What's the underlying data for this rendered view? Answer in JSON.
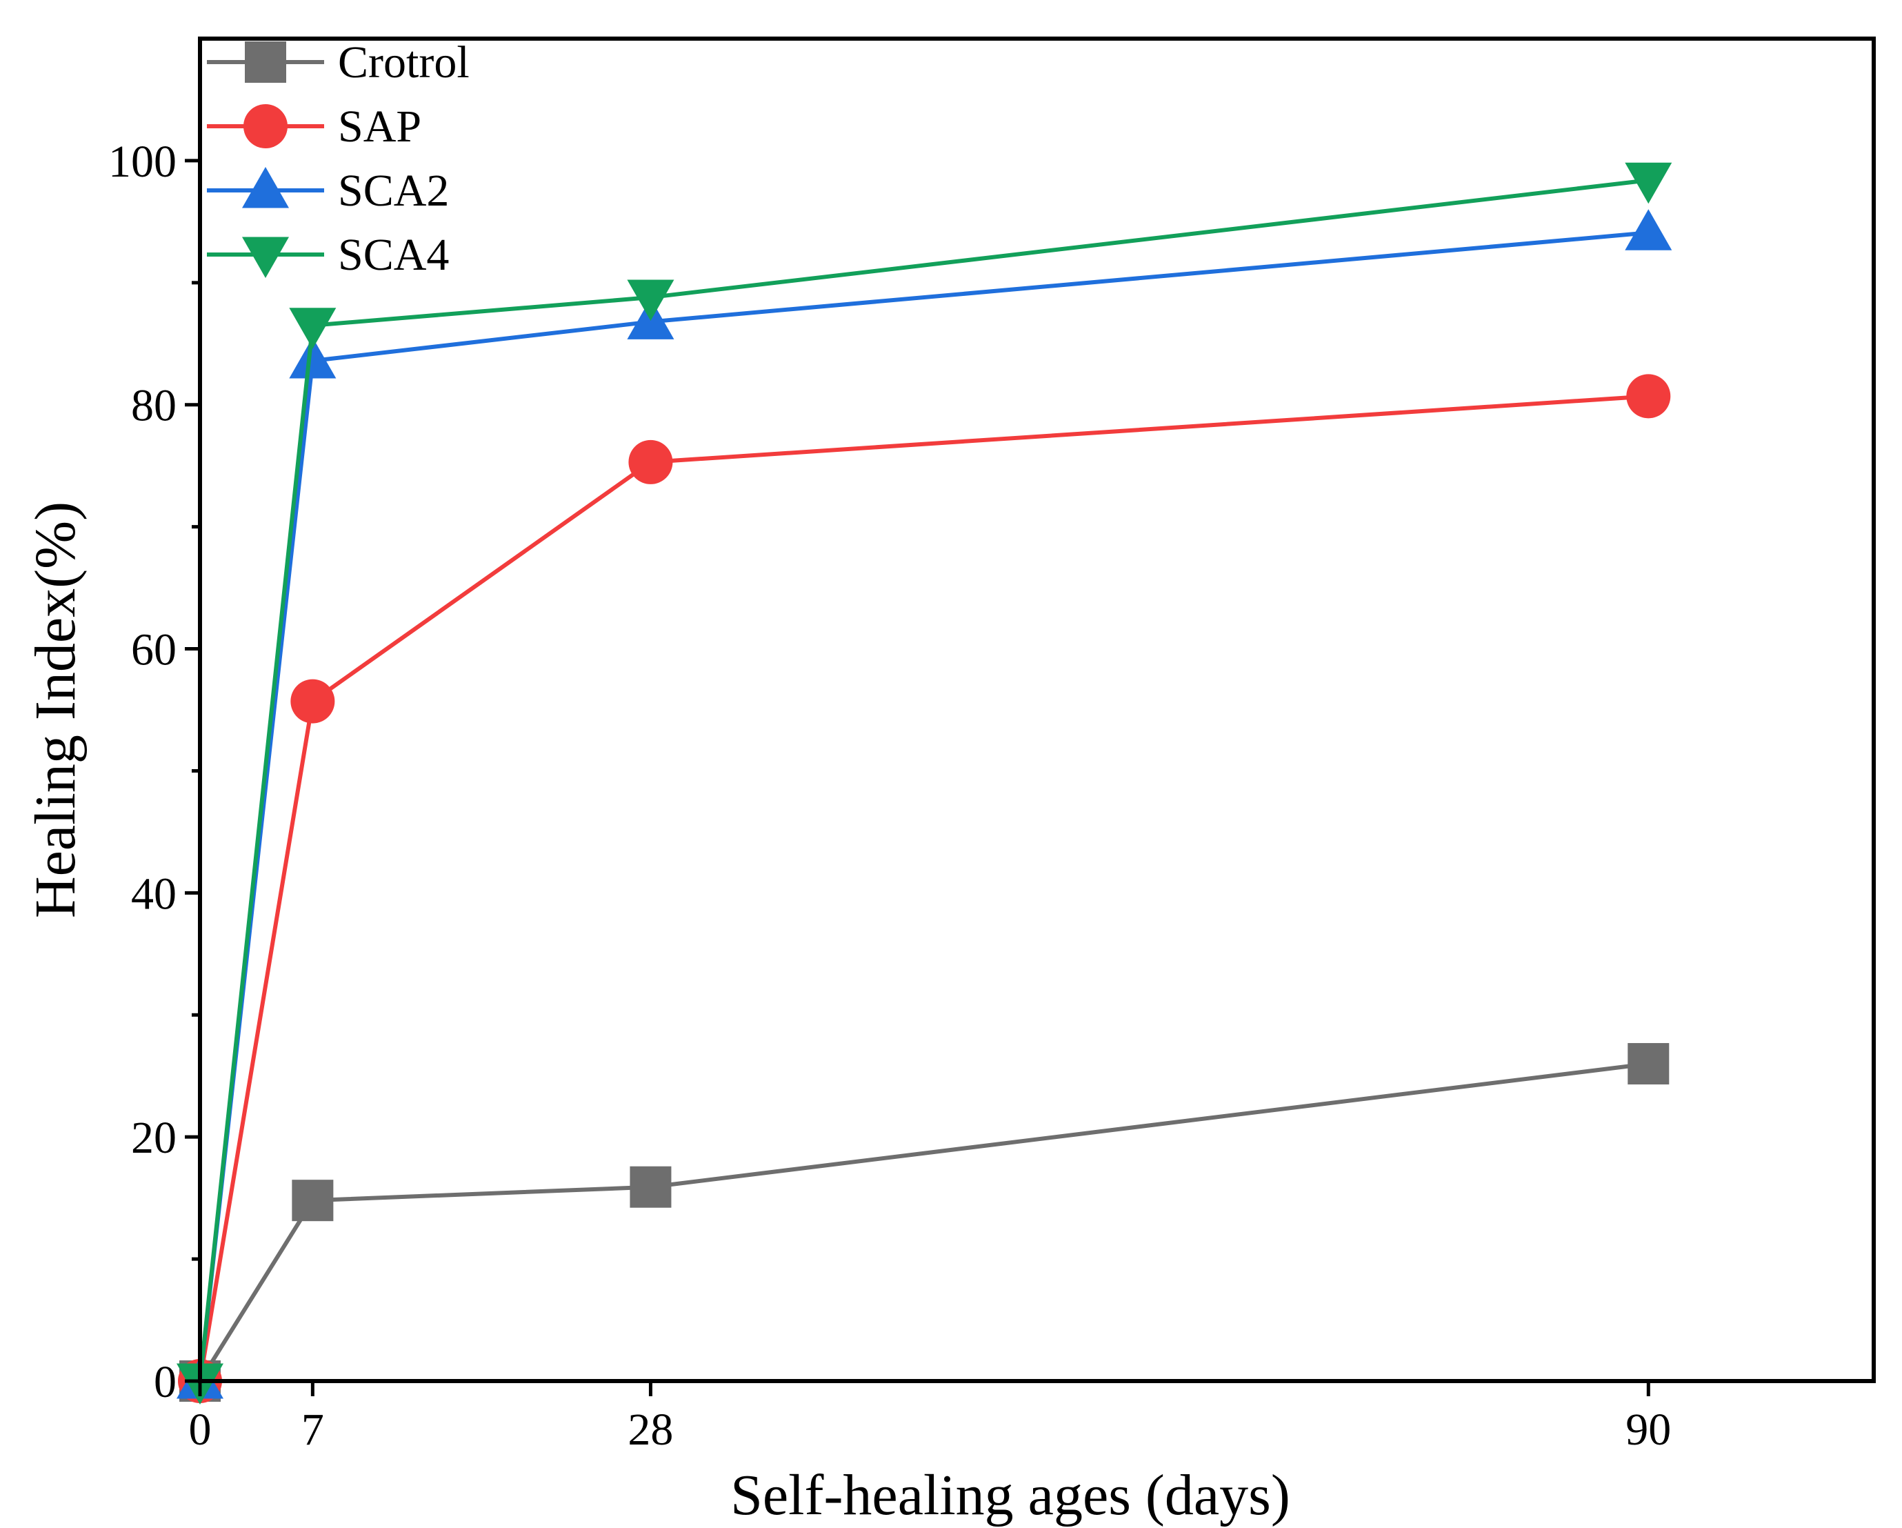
{
  "chart_data": {
    "type": "line",
    "title": "",
    "xlabel": "Self-healing ages (days)",
    "ylabel": "Healing Index(%)",
    "xlim": [
      0,
      104
    ],
    "ylim": [
      0,
      110
    ],
    "xticks": [
      0,
      7,
      28,
      90
    ],
    "xtick_labels": [
      "0",
      "7",
      "28",
      "90"
    ],
    "yticks": [
      0,
      20,
      40,
      60,
      80,
      100
    ],
    "ytick_labels": [
      "0",
      "20",
      "40",
      "60",
      "80",
      "100"
    ],
    "yminor_ticks": [
      10,
      30,
      50,
      70,
      90
    ],
    "grid": false,
    "legend_position": "top-left",
    "x": [
      0,
      7,
      28,
      90
    ],
    "series": [
      {
        "name": "Crotrol",
        "values": [
          0,
          14.8,
          15.9,
          26.0
        ],
        "color": "#6e6e6e",
        "marker": "square"
      },
      {
        "name": "SAP",
        "values": [
          0,
          55.7,
          75.3,
          80.7
        ],
        "color": "#f23c3c",
        "marker": "circle"
      },
      {
        "name": "SCA2",
        "values": [
          0,
          83.6,
          86.8,
          94.1
        ],
        "color": "#1f6fdc",
        "marker": "triangle-up"
      },
      {
        "name": "SCA4",
        "values": [
          0,
          86.5,
          88.8,
          98.4
        ],
        "color": "#12a05a",
        "marker": "triangle-down"
      }
    ]
  }
}
